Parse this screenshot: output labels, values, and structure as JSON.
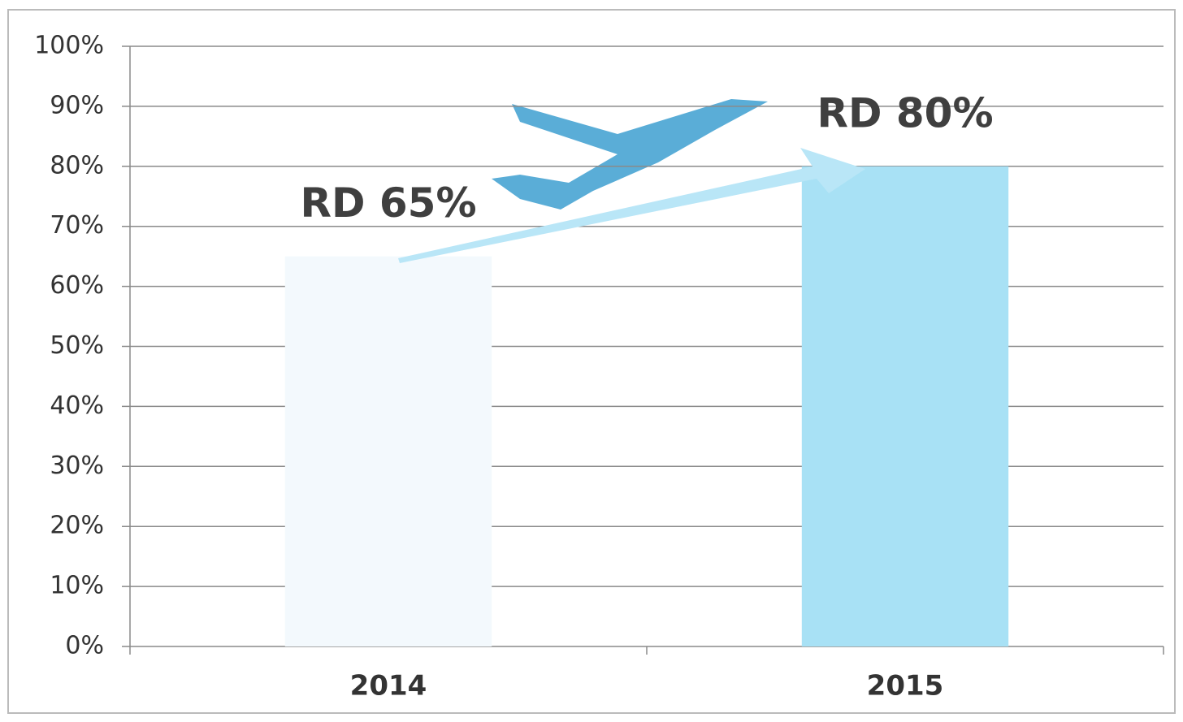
{
  "chart_data": {
    "type": "bar",
    "categories": [
      "2014",
      "2015"
    ],
    "values": [
      65,
      80
    ],
    "value_labels": [
      "RD 65%",
      "RD 80%"
    ],
    "colors": [
      "#f3f9fd",
      "#a8e1f5"
    ],
    "ylim": [
      0,
      100
    ],
    "yticks": [
      {
        "value": 0,
        "label": "0%"
      },
      {
        "value": 10,
        "label": "10%"
      },
      {
        "value": 20,
        "label": "20%"
      },
      {
        "value": 30,
        "label": "30%"
      },
      {
        "value": 40,
        "label": "40%"
      },
      {
        "value": 50,
        "label": "50%"
      },
      {
        "value": 60,
        "label": "60%"
      },
      {
        "value": 70,
        "label": "70%"
      },
      {
        "value": 80,
        "label": "80%"
      },
      {
        "value": 90,
        "label": "90%"
      },
      {
        "value": 100,
        "label": "100%"
      }
    ],
    "grid": true
  }
}
